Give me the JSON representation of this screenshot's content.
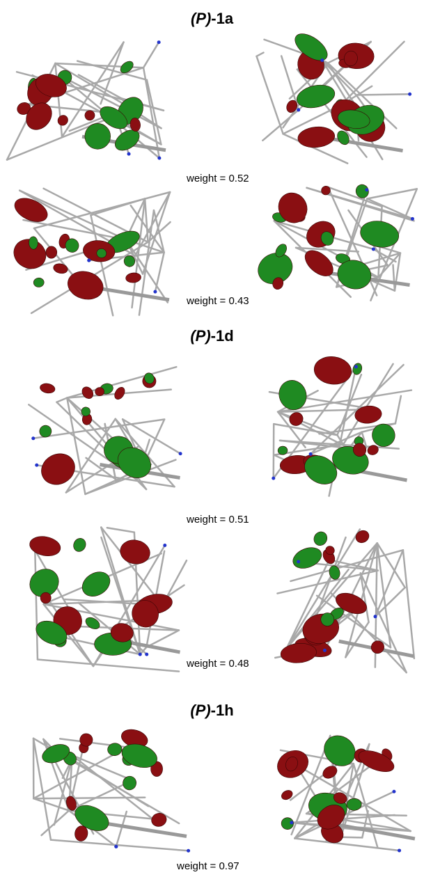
{
  "sections": [
    {
      "title": {
        "prefix": "(P)",
        "suffix": "-1a"
      },
      "weights": [
        "weight = 0.52",
        "weight = 0.43"
      ]
    },
    {
      "title": {
        "prefix": "(P)",
        "suffix": "-1d"
      },
      "weights": [
        "weight = 0.51",
        "weight = 0.48"
      ]
    },
    {
      "title": {
        "prefix": "(P)",
        "suffix": "-1h"
      },
      "weights": [
        "weight = 0.97"
      ]
    }
  ]
}
